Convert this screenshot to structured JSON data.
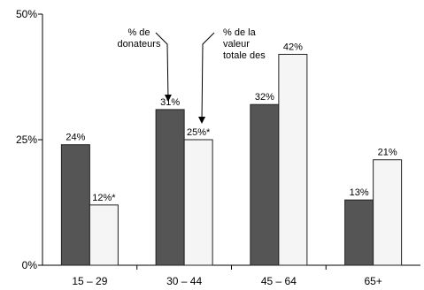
{
  "chart_data": {
    "type": "bar",
    "categories": [
      "15 – 29",
      "30 – 44",
      "45 – 64",
      "65+"
    ],
    "series": [
      {
        "values": [
          24,
          31,
          32,
          13
        ],
        "labels": [
          "24%",
          "31%",
          "32%",
          "13%"
        ],
        "color": "#555555"
      },
      {
        "values": [
          12,
          25,
          42,
          21
        ],
        "labels": [
          "12%*",
          "25%*",
          "42%",
          "21%"
        ],
        "color": "#f5f5f5"
      }
    ],
    "ylim": [
      0,
      50
    ],
    "yticks": [
      {
        "value": 0,
        "label": "0%"
      },
      {
        "value": 25,
        "label": "25%"
      },
      {
        "value": 50,
        "label": "50%"
      }
    ],
    "grid": false,
    "annotations": [
      {
        "lines": [
          "% de",
          "donateurs"
        ],
        "points_to": {
          "series": 0,
          "category": 1
        }
      },
      {
        "lines": [
          "% de la",
          "valeur",
          "totale des"
        ],
        "points_to": {
          "series": 1,
          "category": 1
        }
      }
    ]
  }
}
